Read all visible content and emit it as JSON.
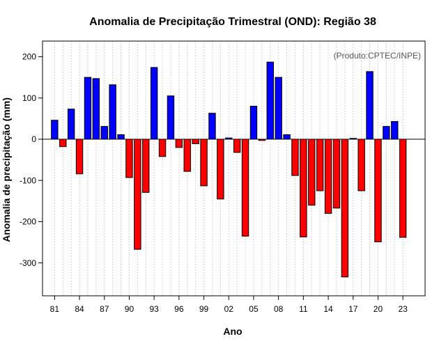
{
  "chart_data": {
    "type": "bar",
    "title": "Anomalia de Precipitação Trimestral (OND): Região 38",
    "xlabel": "Ano",
    "ylabel": "Anomalia de precipitação (mm)",
    "credit": "(Produto:CPTEC/INPE)",
    "ylim": [
      -380,
      240
    ],
    "y_ticks": [
      200,
      100,
      0,
      -100,
      -200,
      -300
    ],
    "x_tick_labels": [
      "81",
      "84",
      "87",
      "90",
      "93",
      "96",
      "99",
      "02",
      "05",
      "08",
      "11",
      "14",
      "17",
      "20",
      "23"
    ],
    "x_tick_every": 3,
    "grid": "vertical-dotted",
    "positive_color": "#0000ff",
    "negative_color": "#ff0000",
    "categories": [
      "1981",
      "1982",
      "1983",
      "1984",
      "1985",
      "1986",
      "1987",
      "1988",
      "1989",
      "1990",
      "1991",
      "1992",
      "1993",
      "1994",
      "1995",
      "1996",
      "1997",
      "1998",
      "1999",
      "2000",
      "2001",
      "2002",
      "2003",
      "2004",
      "2005",
      "2006",
      "2007",
      "2008",
      "2009",
      "2010",
      "2011",
      "2012",
      "2013",
      "2014",
      "2015",
      "2016",
      "2017",
      "2018",
      "2019",
      "2020",
      "2021",
      "2022",
      "2023"
    ],
    "values": [
      46,
      -18,
      73,
      -84,
      150,
      147,
      31,
      132,
      11,
      -93,
      -267,
      -129,
      174,
      -42,
      105,
      -20,
      -78,
      -11,
      -113,
      63,
      -145,
      3,
      -32,
      -235,
      80,
      -3,
      187,
      150,
      11,
      -88,
      -237,
      -160,
      -125,
      -180,
      -167,
      -334,
      2,
      -125,
      164,
      -249,
      31,
      43,
      -238
    ]
  }
}
